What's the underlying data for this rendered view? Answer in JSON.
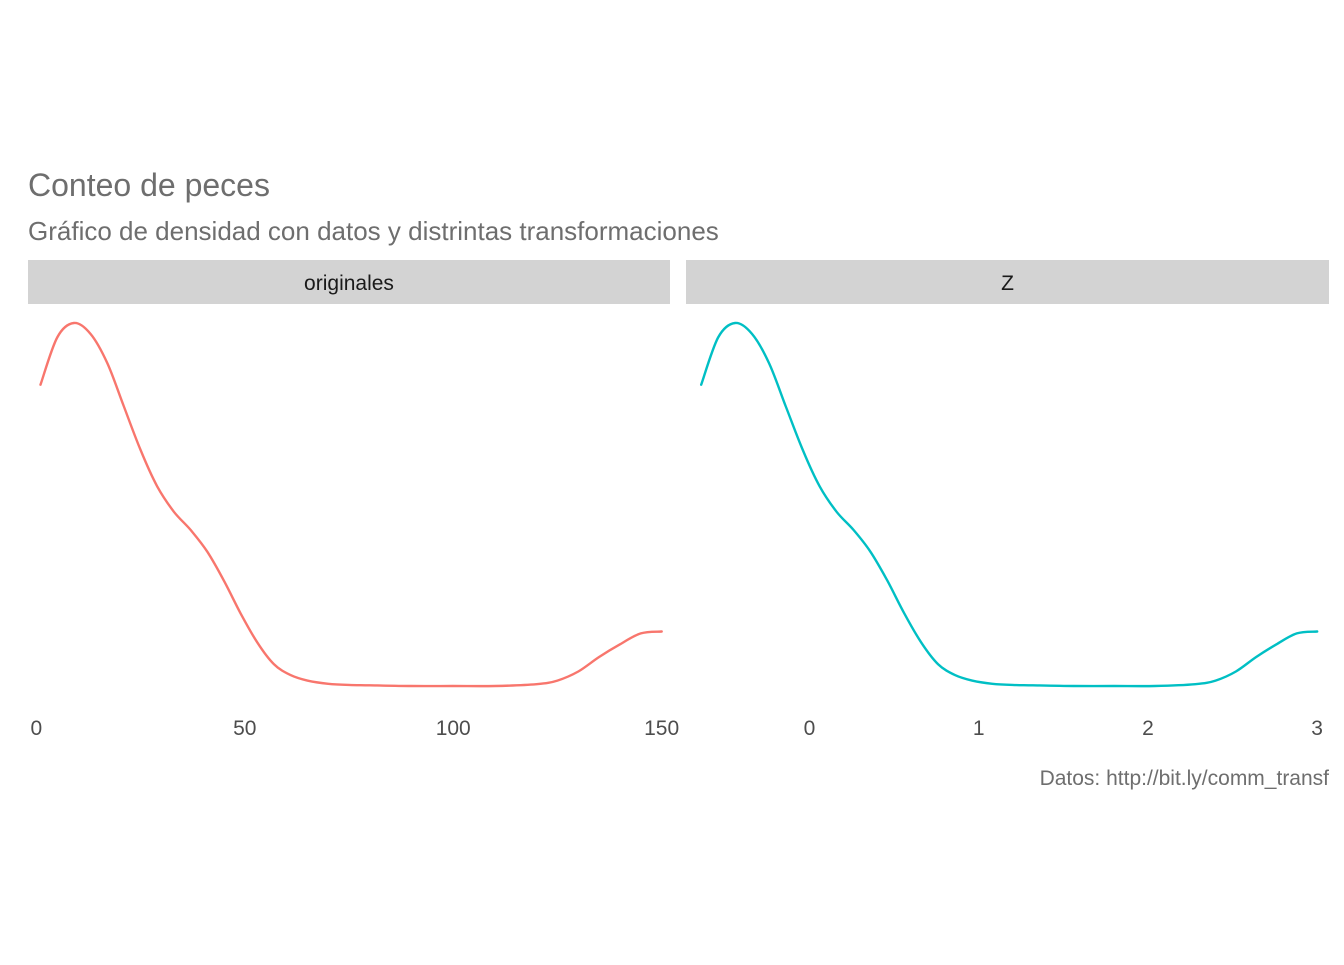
{
  "chart_data": {
    "type": "line",
    "title": "Conteo de peces",
    "subtitle": "Gráfico de densidad con datos y distrintas transformaciones",
    "caption": "Datos: http://bit.ly/comm_transf",
    "xlabel": "",
    "ylabel": "",
    "grid": false,
    "legend": "none",
    "colors": {
      "originales": "#F8766D",
      "Z": "#00BFC4",
      "strip": "#D3D3D3",
      "text": "#6E6E6E"
    },
    "panels": [
      {
        "name": "originales",
        "color": "#F8766D",
        "xlim": [
          -2,
          152
        ],
        "ylim": [
          0,
          1
        ],
        "xticks": [
          0,
          50,
          100,
          150
        ],
        "xtick_labels": [
          "0",
          "50",
          "100",
          "150"
        ],
        "x": [
          1,
          5,
          9,
          13,
          17,
          21,
          25,
          29,
          33,
          37,
          41,
          45,
          49,
          53,
          57,
          61,
          65,
          70,
          75,
          80,
          90,
          100,
          110,
          120,
          125,
          130,
          135,
          140,
          145,
          150
        ],
        "y": [
          0.83,
          0.96,
          1.0,
          0.97,
          0.89,
          0.77,
          0.65,
          0.55,
          0.48,
          0.43,
          0.37,
          0.29,
          0.2,
          0.12,
          0.06,
          0.03,
          0.015,
          0.006,
          0.003,
          0.002,
          0.0,
          0.0,
          0.0,
          0.005,
          0.015,
          0.04,
          0.08,
          0.115,
          0.145,
          0.15
        ]
      },
      {
        "name": "Z",
        "color": "#00BFC4",
        "xlim": [
          -0.73,
          3.07
        ],
        "ylim": [
          0,
          1
        ],
        "xticks": [
          0,
          1,
          2,
          3
        ],
        "xtick_labels": [
          "0",
          "1",
          "2",
          "3"
        ],
        "x": [
          -0.64,
          -0.54,
          -0.44,
          -0.34,
          -0.24,
          -0.14,
          -0.04,
          0.06,
          0.16,
          0.26,
          0.36,
          0.46,
          0.56,
          0.66,
          0.76,
          0.86,
          0.96,
          1.08,
          1.2,
          1.32,
          1.56,
          1.8,
          2.04,
          2.28,
          2.4,
          2.52,
          2.64,
          2.76,
          2.88,
          3.0
        ],
        "y": [
          0.83,
          0.96,
          1.0,
          0.97,
          0.89,
          0.77,
          0.65,
          0.55,
          0.48,
          0.43,
          0.37,
          0.29,
          0.2,
          0.12,
          0.06,
          0.03,
          0.015,
          0.006,
          0.003,
          0.002,
          0.0,
          0.0,
          0.0,
          0.005,
          0.015,
          0.04,
          0.08,
          0.115,
          0.145,
          0.15
        ]
      }
    ]
  }
}
